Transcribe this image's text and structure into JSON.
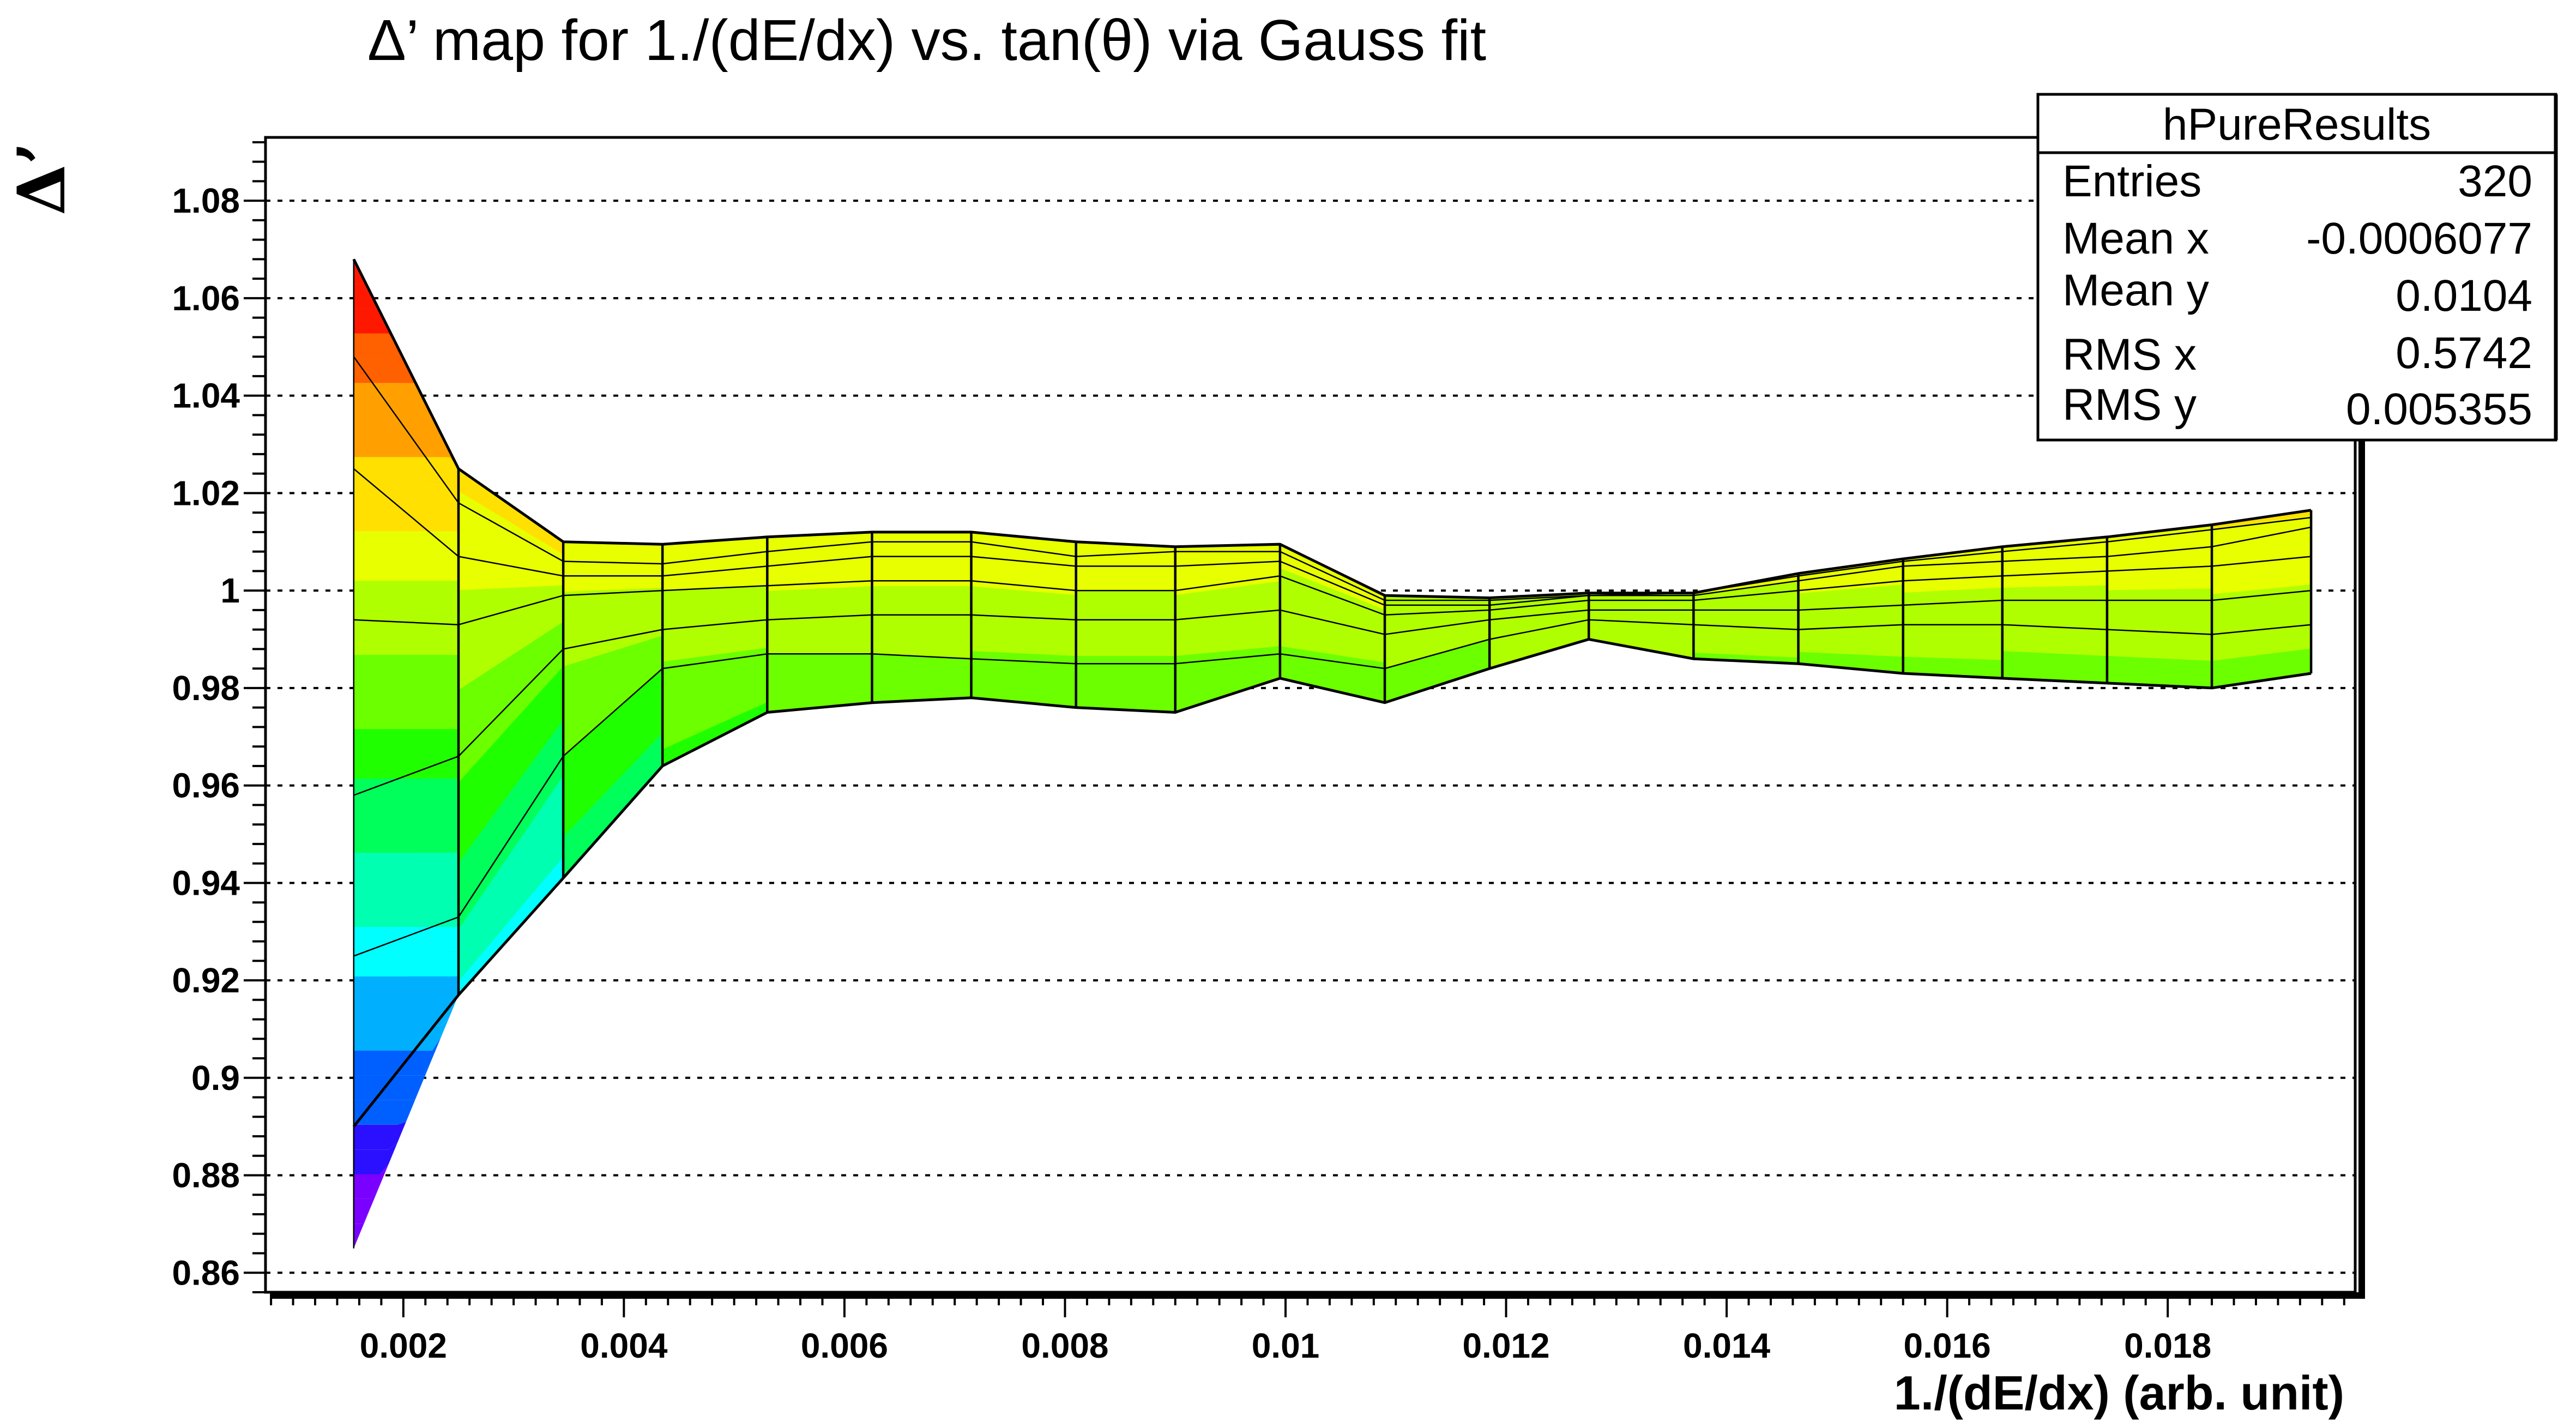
{
  "chart_data": {
    "type": "surface-contour",
    "title": "Δ’ map for 1./(dE/dx) vs. tan(θ) via Gauss fit",
    "xlabel": "1./(dE/dx) (arb. unit)",
    "ylabel": "Δ’",
    "xlim": [
      0.00075,
      0.0197
    ],
    "ylim": [
      0.856,
      1.093
    ],
    "x_ticks": [
      0.002,
      0.004,
      0.006,
      0.008,
      0.01,
      0.012,
      0.014,
      0.016,
      0.018
    ],
    "x_tick_labels": [
      "0.002",
      "0.004",
      "0.006",
      "0.008",
      "0.01",
      "0.012",
      "0.014",
      "0.016",
      "0.018"
    ],
    "y_ticks": [
      0.86,
      0.88,
      0.9,
      0.92,
      0.94,
      0.96,
      0.98,
      1.0,
      1.02,
      1.04,
      1.06,
      1.08
    ],
    "y_tick_labels": [
      "0.86",
      "0.88",
      "0.9",
      "0.92",
      "0.94",
      "0.96",
      "0.98",
      "1",
      "1.02",
      "1.04",
      "1.06",
      "1.08"
    ],
    "grid": true,
    "x": [
      0.00155,
      0.0025,
      0.00345,
      0.00435,
      0.0053,
      0.00625,
      0.00715,
      0.0081,
      0.009,
      0.00995,
      0.0109,
      0.01185,
      0.01275,
      0.0137,
      0.01465,
      0.0156,
      0.0165,
      0.01745,
      0.0184,
      0.0193
    ],
    "curves": [
      [
        1.068,
        1.025,
        1.01,
        1.0095,
        1.011,
        1.012,
        1.012,
        1.01,
        1.009,
        1.0095,
        0.999,
        0.9985,
        0.9995,
        0.9995,
        1.0035,
        1.0065,
        1.009,
        1.011,
        1.0135,
        1.0165
      ],
      [
        1.048,
        1.018,
        1.006,
        1.0055,
        1.008,
        1.01,
        1.01,
        1.007,
        1.008,
        1.008,
        0.998,
        0.998,
        0.999,
        0.9995,
        1.003,
        1.006,
        1.008,
        1.01,
        1.0125,
        1.015
      ],
      [
        1.025,
        1.007,
        1.003,
        1.003,
        1.005,
        1.007,
        1.007,
        1.005,
        1.005,
        1.006,
        0.997,
        0.997,
        0.999,
        0.999,
        1.002,
        1.005,
        1.006,
        1.007,
        1.009,
        1.013
      ],
      [
        0.994,
        0.993,
        0.999,
        1.0,
        1.001,
        1.002,
        1.002,
        1.0,
        1.0,
        1.003,
        0.995,
        0.996,
        0.998,
        0.998,
        1.0,
        1.002,
        1.003,
        1.004,
        1.005,
        1.007
      ],
      [
        0.958,
        0.966,
        0.988,
        0.992,
        0.994,
        0.995,
        0.995,
        0.994,
        0.994,
        0.996,
        0.991,
        0.994,
        0.996,
        0.996,
        0.996,
        0.997,
        0.998,
        0.998,
        0.998,
        1.0
      ],
      [
        0.925,
        0.933,
        0.966,
        0.984,
        0.987,
        0.987,
        0.986,
        0.985,
        0.985,
        0.987,
        0.984,
        0.99,
        0.994,
        0.993,
        0.992,
        0.993,
        0.993,
        0.992,
        0.991,
        0.993
      ],
      [
        0.89,
        0.917,
        0.941,
        0.964,
        0.975,
        0.977,
        0.978,
        0.976,
        0.975,
        0.982,
        0.977,
        0.984,
        0.99,
        0.986,
        0.985,
        0.983,
        0.982,
        0.981,
        0.98,
        0.983
      ]
    ],
    "left_edge": [
      1.068,
      0.865
    ]
  },
  "stats_box": {
    "title": "hPureResults",
    "rows": [
      {
        "label": "Entries",
        "value": "320"
      },
      {
        "label": "Mean x",
        "value": "-0.0006077"
      },
      {
        "label": "Mean y",
        "value": "0.0104"
      },
      {
        "label": "RMS x",
        "value": "0.5742"
      },
      {
        "label": "RMS y",
        "value": "0.005355"
      }
    ]
  },
  "colors": {
    "frame": "#000000",
    "grid": "#000000",
    "palette": [
      "#7a00ff",
      "#2a10ff",
      "#0060ff",
      "#00b0ff",
      "#00ffff",
      "#00ffb0",
      "#00ff5a",
      "#20ff00",
      "#6cff00",
      "#b0ff00",
      "#e8ff00",
      "#ffe000",
      "#ffa000",
      "#ff6000",
      "#ff1800"
    ]
  }
}
